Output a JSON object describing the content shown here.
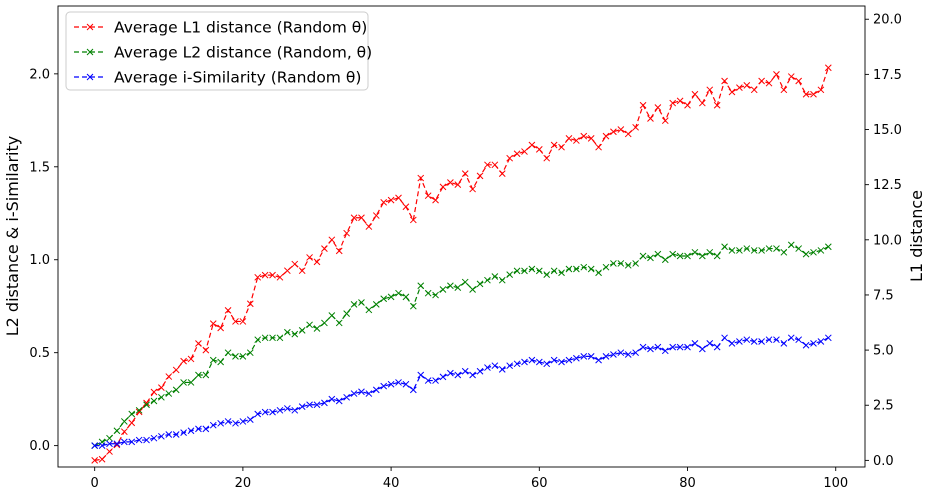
{
  "chart_data": {
    "type": "line",
    "xlabel": "",
    "ylabel_left": "L2 distance & i-Similarity",
    "ylabel_right": "L1 distance",
    "xlim": [
      -4.95,
      103.95
    ],
    "ylim_left": [
      -0.115,
      2.365
    ],
    "ylim_right": [
      -0.3,
      20.6
    ],
    "x_ticks": [
      0,
      20,
      40,
      60,
      80,
      100
    ],
    "x_tick_labels": [
      "0",
      "20",
      "40",
      "60",
      "80",
      "100"
    ],
    "left_ticks": [
      0.0,
      0.5,
      1.0,
      1.5,
      2.0
    ],
    "left_tick_labels": [
      "0.0",
      "0.5",
      "1.0",
      "1.5",
      "2.0"
    ],
    "right_ticks": [
      0.0,
      2.5,
      5.0,
      7.5,
      10.0,
      12.5,
      15.0,
      17.5,
      20.0
    ],
    "right_tick_labels": [
      "0.0",
      "2.5",
      "5.0",
      "7.5",
      "10.0",
      "12.5",
      "15.0",
      "17.5",
      "20.0"
    ],
    "grid": false,
    "legend_position": "top-left",
    "x": [
      0,
      1,
      2,
      3,
      4,
      5,
      6,
      7,
      8,
      9,
      10,
      11,
      12,
      13,
      14,
      15,
      16,
      17,
      18,
      19,
      20,
      21,
      22,
      23,
      24,
      25,
      26,
      27,
      28,
      29,
      30,
      31,
      32,
      33,
      34,
      35,
      36,
      37,
      38,
      39,
      40,
      41,
      42,
      43,
      44,
      45,
      46,
      47,
      48,
      49,
      50,
      51,
      52,
      53,
      54,
      55,
      56,
      57,
      58,
      59,
      60,
      61,
      62,
      63,
      64,
      65,
      66,
      67,
      68,
      69,
      70,
      71,
      72,
      73,
      74,
      75,
      76,
      77,
      78,
      79,
      80,
      81,
      82,
      83,
      84,
      85,
      86,
      87,
      88,
      89,
      90,
      91,
      92,
      93,
      94,
      95,
      96,
      97,
      98,
      99
    ],
    "series": [
      {
        "name": "Average L1 distance (Random θ)",
        "axis": "right",
        "color": "#ff0000",
        "values": [
          0.0,
          0.05,
          0.4,
          0.7,
          1.3,
          1.7,
          2.2,
          2.6,
          3.1,
          3.3,
          3.8,
          4.1,
          4.5,
          4.6,
          5.3,
          5.0,
          6.2,
          6.0,
          6.8,
          6.3,
          6.3,
          7.1,
          8.3,
          8.4,
          8.4,
          8.3,
          8.6,
          8.9,
          8.6,
          9.2,
          9.0,
          9.6,
          10.0,
          9.5,
          10.3,
          11.0,
          11.0,
          10.6,
          11.1,
          11.7,
          11.8,
          11.9,
          11.5,
          10.9,
          12.8,
          12.0,
          11.8,
          12.4,
          12.6,
          12.5,
          13.0,
          12.3,
          12.9,
          13.4,
          13.4,
          13.0,
          13.7,
          13.9,
          14.0,
          14.3,
          14.1,
          13.7,
          14.3,
          14.2,
          14.6,
          14.5,
          14.7,
          14.6,
          14.2,
          14.7,
          14.9,
          15.0,
          14.8,
          15.1,
          16.1,
          15.5,
          16.0,
          15.4,
          16.2,
          16.3,
          16.1,
          16.6,
          16.2,
          16.8,
          16.1,
          17.2,
          16.7,
          16.9,
          17.0,
          16.8,
          17.2,
          17.1,
          17.5,
          16.8,
          17.4,
          17.2,
          16.6,
          16.6,
          16.8,
          17.8
        ]
      },
      {
        "name": "Average L2 distance (Random, θ)",
        "axis": "left",
        "color": "#008000",
        "values": [
          0.0,
          0.02,
          0.04,
          0.08,
          0.13,
          0.17,
          0.19,
          0.22,
          0.24,
          0.26,
          0.28,
          0.3,
          0.34,
          0.34,
          0.38,
          0.38,
          0.46,
          0.45,
          0.5,
          0.48,
          0.48,
          0.5,
          0.57,
          0.58,
          0.58,
          0.58,
          0.61,
          0.6,
          0.62,
          0.65,
          0.63,
          0.66,
          0.7,
          0.66,
          0.71,
          0.76,
          0.77,
          0.73,
          0.76,
          0.79,
          0.8,
          0.82,
          0.8,
          0.75,
          0.86,
          0.82,
          0.81,
          0.84,
          0.86,
          0.85,
          0.88,
          0.84,
          0.87,
          0.89,
          0.91,
          0.89,
          0.92,
          0.94,
          0.94,
          0.95,
          0.94,
          0.92,
          0.94,
          0.93,
          0.95,
          0.95,
          0.96,
          0.95,
          0.93,
          0.96,
          0.98,
          0.98,
          0.97,
          0.98,
          1.02,
          1.01,
          1.03,
          1.0,
          1.03,
          1.02,
          1.02,
          1.04,
          1.02,
          1.04,
          1.02,
          1.07,
          1.05,
          1.05,
          1.06,
          1.05,
          1.05,
          1.06,
          1.06,
          1.04,
          1.08,
          1.06,
          1.03,
          1.04,
          1.05,
          1.07
        ]
      },
      {
        "name": "Average i-Similarity (Random θ)",
        "axis": "left",
        "color": "#0000ff",
        "values": [
          0.0,
          0.0,
          0.01,
          0.01,
          0.02,
          0.02,
          0.03,
          0.03,
          0.04,
          0.05,
          0.06,
          0.06,
          0.07,
          0.08,
          0.09,
          0.09,
          0.11,
          0.12,
          0.13,
          0.12,
          0.13,
          0.14,
          0.17,
          0.18,
          0.18,
          0.19,
          0.2,
          0.19,
          0.21,
          0.22,
          0.22,
          0.23,
          0.25,
          0.24,
          0.26,
          0.28,
          0.29,
          0.28,
          0.3,
          0.32,
          0.33,
          0.34,
          0.33,
          0.3,
          0.38,
          0.35,
          0.35,
          0.37,
          0.39,
          0.38,
          0.4,
          0.38,
          0.4,
          0.42,
          0.43,
          0.41,
          0.43,
          0.44,
          0.45,
          0.46,
          0.45,
          0.44,
          0.46,
          0.45,
          0.46,
          0.47,
          0.48,
          0.48,
          0.46,
          0.48,
          0.49,
          0.5,
          0.49,
          0.5,
          0.53,
          0.52,
          0.53,
          0.51,
          0.53,
          0.53,
          0.53,
          0.55,
          0.52,
          0.55,
          0.53,
          0.58,
          0.55,
          0.56,
          0.57,
          0.56,
          0.56,
          0.57,
          0.57,
          0.55,
          0.58,
          0.57,
          0.54,
          0.55,
          0.56,
          0.58
        ]
      }
    ],
    "legend": [
      {
        "label": "Average L1 distance (Random θ)",
        "color": "#ff0000"
      },
      {
        "label": "Average L2 distance (Random, θ)",
        "color": "#008000"
      },
      {
        "label": "Average i-Similarity (Random θ)",
        "color": "#0000ff"
      }
    ]
  }
}
